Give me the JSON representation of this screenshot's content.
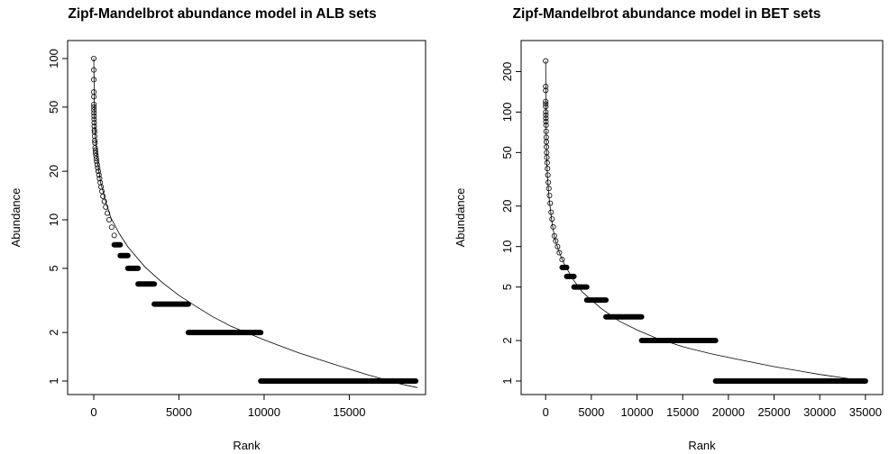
{
  "chart_data": [
    {
      "type": "scatter",
      "title": "Zipf-Mandelbrot abundance model in ALB sets",
      "xlabel": "Rank",
      "ylabel": "Abundance",
      "xlim": [
        -900,
        19000
      ],
      "ylim": [
        1,
        100
      ],
      "y_log": true,
      "xticks": [
        0,
        5000,
        10000,
        15000
      ],
      "yticks": [
        1,
        2,
        5,
        10,
        20,
        50,
        100
      ],
      "points": [
        [
          1,
          100
        ],
        [
          2,
          85
        ],
        [
          3,
          74
        ],
        [
          4,
          62
        ],
        [
          6,
          58
        ],
        [
          8,
          52
        ],
        [
          10,
          50
        ],
        [
          12,
          48
        ],
        [
          15,
          46
        ],
        [
          18,
          44
        ],
        [
          22,
          42
        ],
        [
          26,
          40
        ],
        [
          30,
          38
        ],
        [
          35,
          36
        ],
        [
          40,
          35
        ],
        [
          50,
          33
        ],
        [
          60,
          31
        ],
        [
          70,
          30
        ],
        [
          80,
          28
        ],
        [
          95,
          27
        ],
        [
          110,
          26
        ],
        [
          130,
          25
        ],
        [
          150,
          24
        ],
        [
          170,
          23
        ],
        [
          200,
          22
        ],
        [
          230,
          21
        ],
        [
          260,
          20
        ],
        [
          300,
          19
        ],
        [
          340,
          18
        ],
        [
          380,
          17
        ],
        [
          430,
          16
        ],
        [
          480,
          15
        ],
        [
          540,
          14
        ],
        [
          620,
          13
        ],
        [
          700,
          12
        ],
        [
          800,
          11
        ],
        [
          900,
          10
        ],
        [
          1050,
          9
        ],
        [
          1200,
          8
        ]
      ],
      "steps": [
        {
          "y": 7,
          "x_start": 1200,
          "x_end": 1550
        },
        {
          "y": 6,
          "x_start": 1550,
          "x_end": 2000
        },
        {
          "y": 5,
          "x_start": 2000,
          "x_end": 2600
        },
        {
          "y": 4,
          "x_start": 2600,
          "x_end": 3550
        },
        {
          "y": 3,
          "x_start": 3550,
          "x_end": 5550
        },
        {
          "y": 2,
          "x_start": 5550,
          "x_end": 9800
        },
        {
          "y": 1,
          "x_start": 9800,
          "x_end": 18900
        }
      ],
      "curve": [
        [
          1,
          100
        ],
        [
          50,
          42
        ],
        [
          100,
          31
        ],
        [
          200,
          24
        ],
        [
          400,
          17
        ],
        [
          700,
          13
        ],
        [
          1000,
          10.3
        ],
        [
          1500,
          8.2
        ],
        [
          2000,
          6.8
        ],
        [
          3000,
          5.1
        ],
        [
          4000,
          4.1
        ],
        [
          5000,
          3.4
        ],
        [
          6000,
          2.9
        ],
        [
          7000,
          2.5
        ],
        [
          8000,
          2.2
        ],
        [
          10000,
          1.8
        ],
        [
          12000,
          1.5
        ],
        [
          14000,
          1.28
        ],
        [
          16000,
          1.1
        ],
        [
          18000,
          0.96
        ],
        [
          19000,
          0.91
        ]
      ]
    },
    {
      "type": "scatter",
      "title": "Zipf-Mandelbrot abundance model in BET sets",
      "xlabel": "Rank",
      "ylabel": "Abundance",
      "xlim": [
        -1500,
        36000
      ],
      "ylim": [
        1,
        250
      ],
      "y_log": true,
      "xticks": [
        0,
        5000,
        10000,
        15000,
        20000,
        25000,
        30000,
        35000
      ],
      "yticks": [
        1,
        2,
        5,
        10,
        20,
        50,
        100,
        200
      ],
      "points": [
        [
          1,
          240
        ],
        [
          3,
          155
        ],
        [
          5,
          145
        ],
        [
          8,
          120
        ],
        [
          10,
          115
        ],
        [
          13,
          110
        ],
        [
          16,
          100
        ],
        [
          20,
          95
        ],
        [
          25,
          90
        ],
        [
          30,
          85
        ],
        [
          40,
          80
        ],
        [
          50,
          72
        ],
        [
          60,
          65
        ],
        [
          75,
          60
        ],
        [
          90,
          55
        ],
        [
          110,
          50
        ],
        [
          130,
          46
        ],
        [
          160,
          42
        ],
        [
          200,
          38
        ],
        [
          240,
          34
        ],
        [
          290,
          30
        ],
        [
          350,
          27
        ],
        [
          420,
          24
        ],
        [
          500,
          21
        ],
        [
          600,
          18
        ],
        [
          700,
          16
        ],
        [
          820,
          14
        ],
        [
          950,
          12
        ],
        [
          1100,
          11
        ],
        [
          1300,
          10
        ],
        [
          1500,
          9
        ],
        [
          1800,
          8
        ]
      ],
      "steps": [
        {
          "y": 7,
          "x_start": 1800,
          "x_end": 2300
        },
        {
          "y": 6,
          "x_start": 2300,
          "x_end": 3100
        },
        {
          "y": 5,
          "x_start": 3100,
          "x_end": 4500
        },
        {
          "y": 4,
          "x_start": 4500,
          "x_end": 6600
        },
        {
          "y": 3,
          "x_start": 6600,
          "x_end": 10500
        },
        {
          "y": 2,
          "x_start": 10500,
          "x_end": 18600
        },
        {
          "y": 1,
          "x_start": 18600,
          "x_end": 35000
        }
      ],
      "curve": [
        [
          1,
          240
        ],
        [
          50,
          75
        ],
        [
          100,
          50
        ],
        [
          200,
          33
        ],
        [
          400,
          22
        ],
        [
          700,
          15
        ],
        [
          1000,
          11.5
        ],
        [
          1500,
          9
        ],
        [
          2000,
          7.5
        ],
        [
          3000,
          5.7
        ],
        [
          4000,
          4.6
        ],
        [
          5000,
          4
        ],
        [
          6000,
          3.5
        ],
        [
          8000,
          2.8
        ],
        [
          10000,
          2.4
        ],
        [
          12000,
          2.1
        ],
        [
          15000,
          1.8
        ],
        [
          18000,
          1.6
        ],
        [
          21000,
          1.45
        ],
        [
          25000,
          1.28
        ],
        [
          30000,
          1.12
        ],
        [
          35000,
          1.0
        ]
      ]
    }
  ]
}
